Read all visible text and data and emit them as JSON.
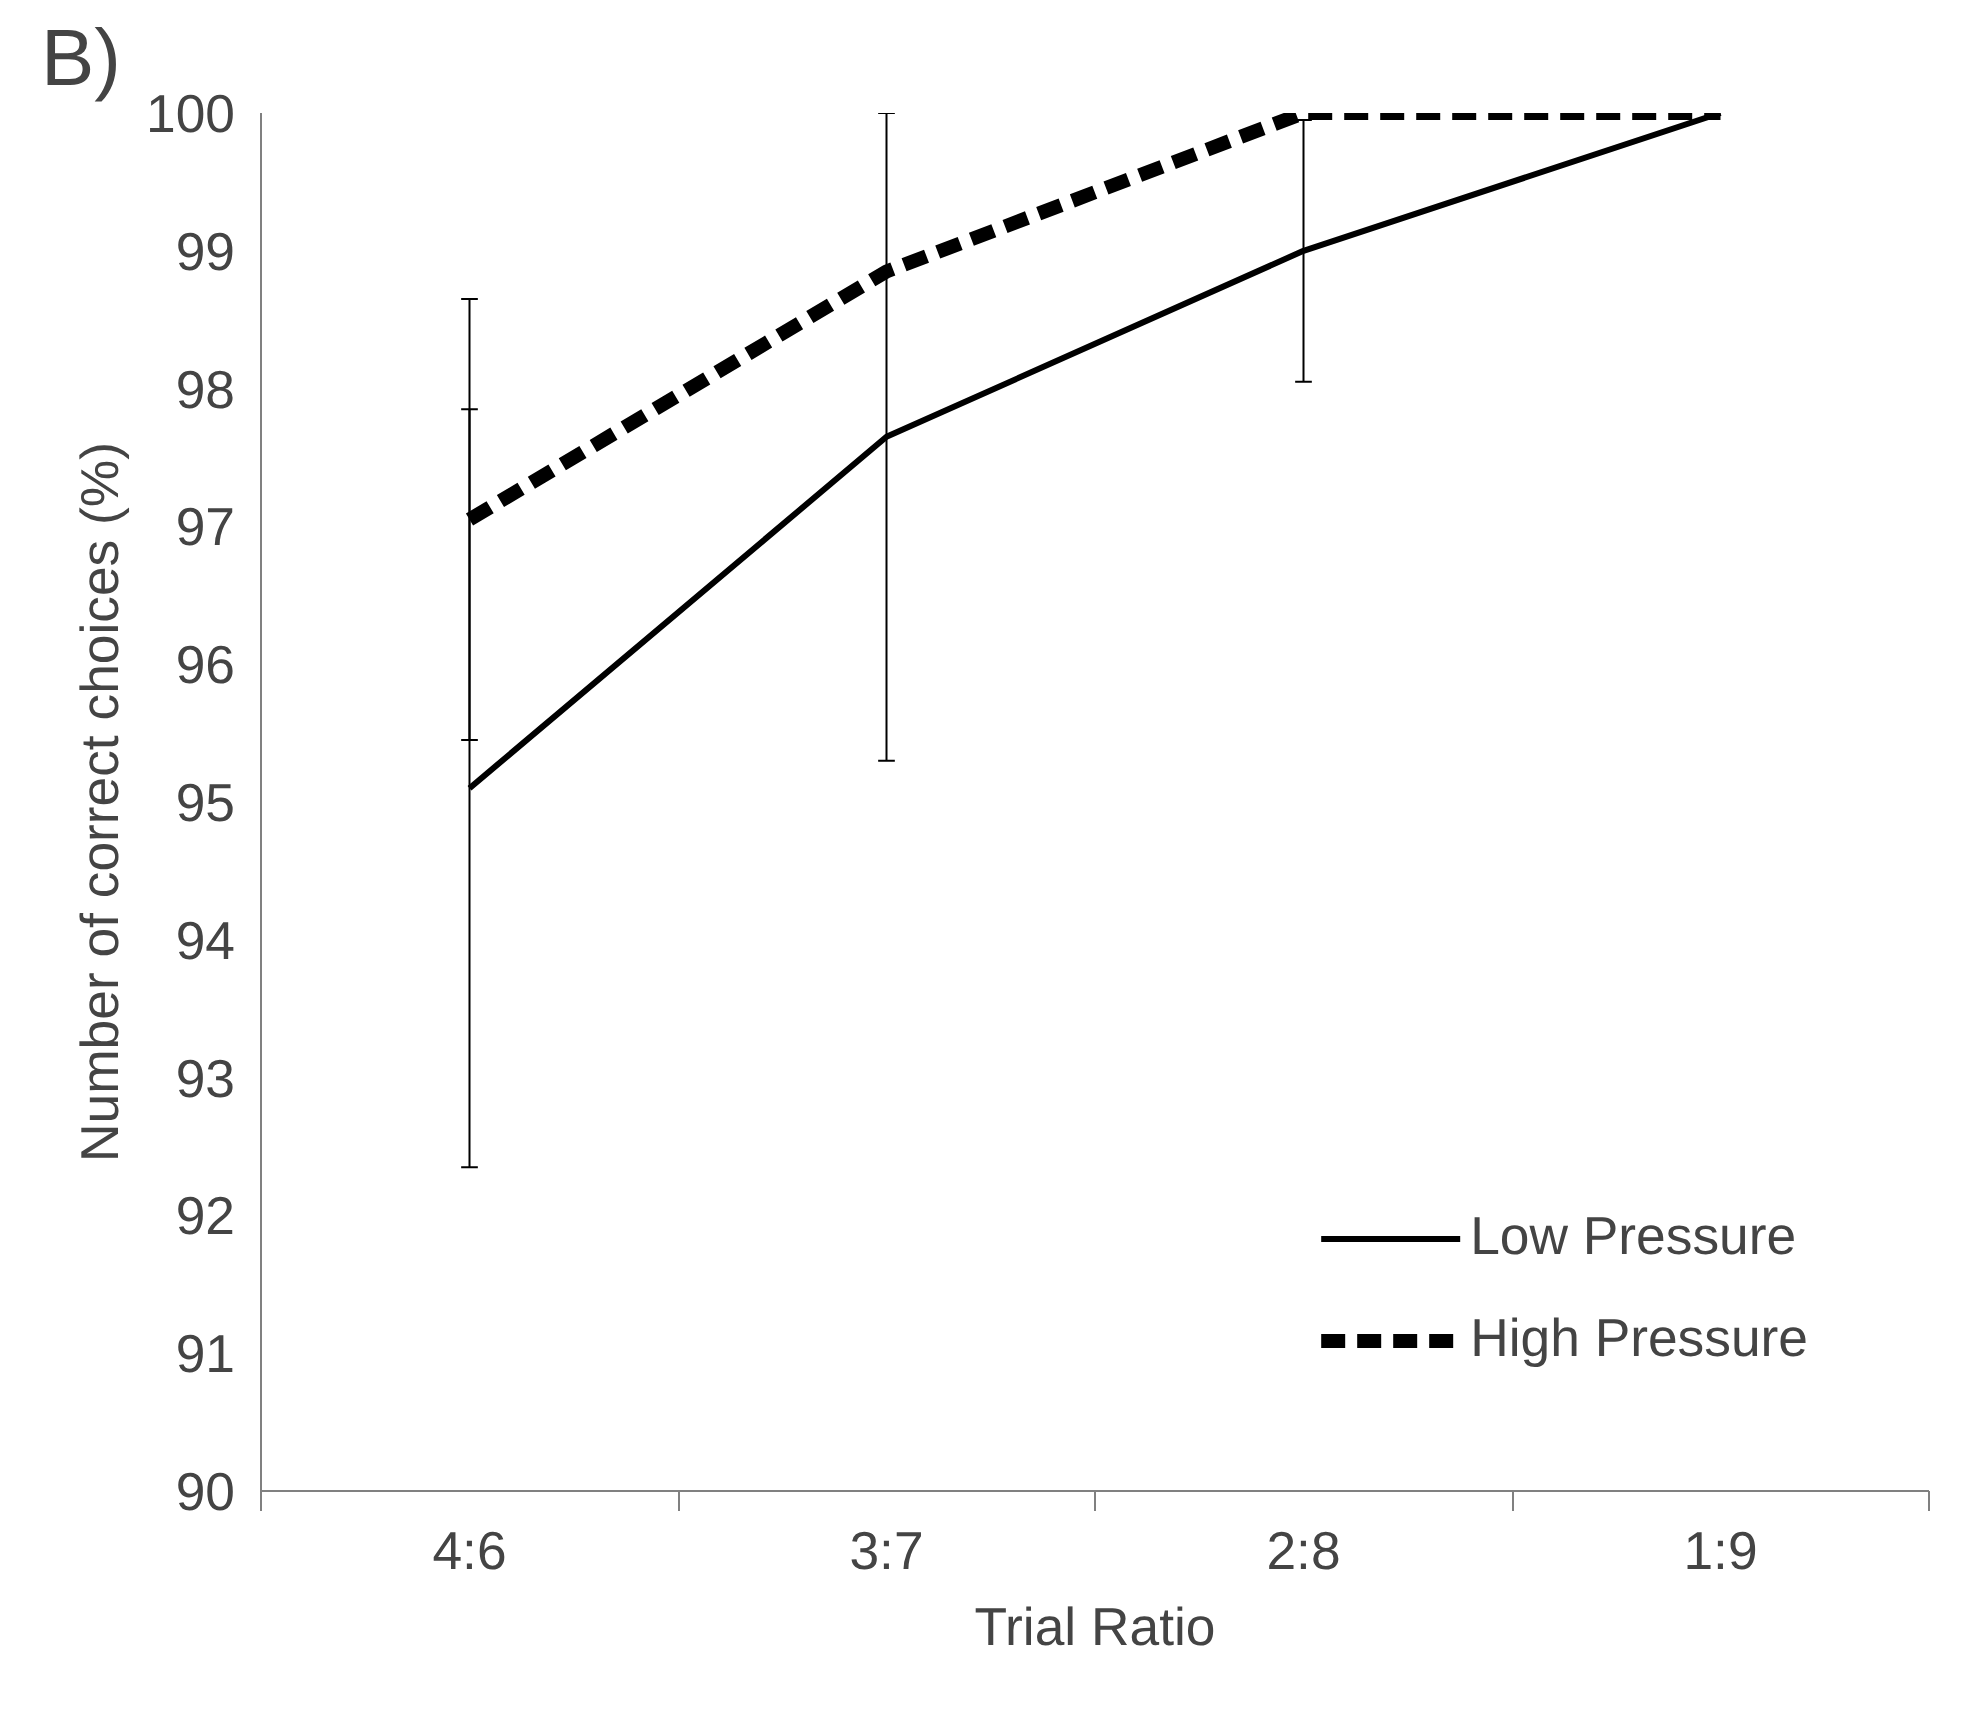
{
  "chart_data": {
    "type": "line",
    "xlabel": "Trial Ratio",
    "ylabel": "Number of correct choices (%)",
    "annotations": [
      "B)"
    ],
    "categories": [
      "4:6",
      "3:7",
      "2:8",
      "1:9"
    ],
    "series": [
      {
        "name": "Low Pressure",
        "color": "#000000",
        "line_style": "solid",
        "values": [
          95.1,
          97.65,
          99.0,
          100
        ],
        "errors": [
          2.75,
          2.35,
          0.95,
          null
        ]
      },
      {
        "name": "High Pressure",
        "color": "#000000",
        "line_style": "dashed",
        "values": [
          97.05,
          98.85,
          100,
          100
        ],
        "errors": [
          1.6,
          null,
          null,
          null
        ]
      }
    ],
    "ylim": [
      90,
      100
    ],
    "yticks": [
      90,
      91,
      92,
      93,
      94,
      95,
      96,
      97,
      98,
      99,
      100
    ],
    "grid": false,
    "legend": "bottom right",
    "marker": "none"
  }
}
